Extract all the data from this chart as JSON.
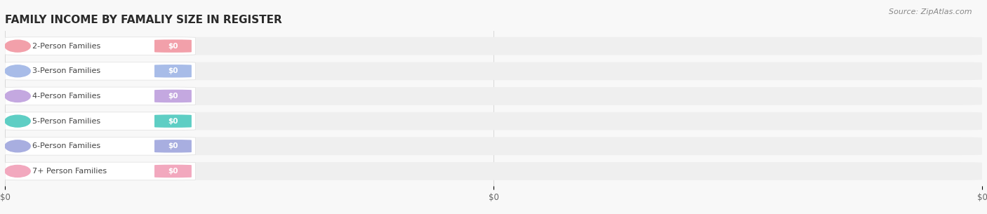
{
  "title": "FAMILY INCOME BY FAMALIY SIZE IN REGISTER",
  "source": "Source: ZipAtlas.com",
  "categories": [
    "2-Person Families",
    "3-Person Families",
    "4-Person Families",
    "5-Person Families",
    "6-Person Families",
    "7+ Person Families"
  ],
  "values": [
    "$0",
    "$0",
    "$0",
    "$0",
    "$0",
    "$0"
  ],
  "bar_colors": [
    "#f2a0aa",
    "#a8bce8",
    "#c4a8e0",
    "#5ecec4",
    "#a8aee0",
    "#f2a8be"
  ],
  "background_color": "#f8f8f8",
  "bar_bg_color": "#efefef",
  "label_bg_color": "#ffffff",
  "title_fontsize": 11,
  "source_fontsize": 8,
  "label_fontsize": 8,
  "value_fontsize": 7.5,
  "xtick_labels": [
    "$0",
    "$0",
    "$0"
  ],
  "xtick_positions": [
    0.0,
    0.5,
    1.0
  ]
}
